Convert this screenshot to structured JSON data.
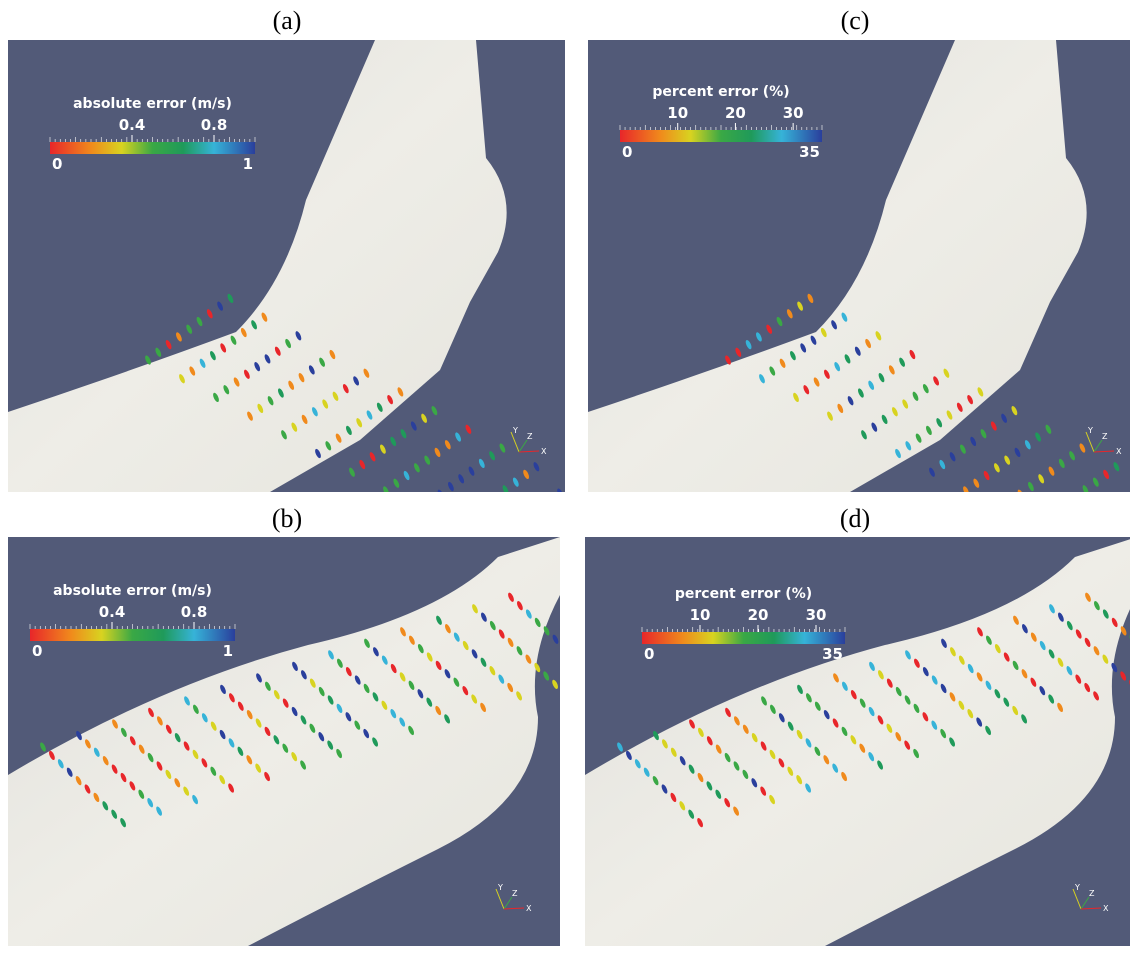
{
  "panels": [
    {
      "label": "(a)",
      "colorbar": {
        "title": "absolute error (m/s)",
        "range": [
          0,
          1
        ],
        "ticks": [
          0.4,
          0.8
        ]
      },
      "axes": [
        "Y",
        "Z",
        "X"
      ]
    },
    {
      "label": "(b)",
      "colorbar": {
        "title": "absolute error (m/s)",
        "range": [
          0,
          1
        ],
        "ticks": [
          0.4,
          0.8
        ]
      },
      "axes": [
        "Y",
        "Z",
        "X"
      ]
    },
    {
      "label": "(c)",
      "colorbar": {
        "title": "percent error (%)",
        "range": [
          0,
          35
        ],
        "ticks": [
          10,
          20,
          30
        ]
      },
      "axes": [
        "Y",
        "Z",
        "X"
      ]
    },
    {
      "label": "(d)",
      "colorbar": {
        "title": "percent error (%)",
        "range": [
          0,
          35
        ],
        "ticks": [
          10,
          20,
          30
        ]
      },
      "axes": [
        "Y",
        "Z",
        "X"
      ]
    }
  ]
}
